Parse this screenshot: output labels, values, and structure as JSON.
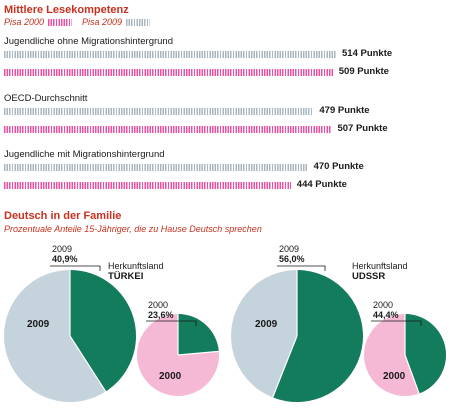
{
  "section1": {
    "title": "Mittlere Lesekompetenz",
    "legend": [
      {
        "label": "Pisa 2000",
        "color": "#ec4fa4"
      },
      {
        "label": "Pisa 2009",
        "color": "#a9b7c1"
      }
    ]
  },
  "section2": {
    "title": "Deutsch in der Familie",
    "subtitle": "Prozentuale Anteile 15-Jähriger, die zu Hause Deutsch sprechen"
  },
  "colors": {
    "pisa2000": "#ec4fa4",
    "pisa2009": "#a9b7c1",
    "green": "#127c5c",
    "grey": "#c5d3dd",
    "pink": "#f5b9d6",
    "red": "#c8311f"
  },
  "chart_data": [
    {
      "type": "bar",
      "title": "Mittlere Lesekompetenz",
      "categories": [
        "Jugendliche ohne Migrationshintergrund",
        "OECD-Durchschnitt",
        "Jugendliche mit Migrationshintergrund"
      ],
      "series": [
        {
          "name": "Pisa 2009",
          "values": [
            514,
            479,
            470
          ],
          "labels": [
            "514 Punkte",
            "479 Punkte",
            "470 Punkte"
          ]
        },
        {
          "name": "Pisa 2000",
          "values": [
            509,
            507,
            444
          ],
          "labels": [
            "509 Punkte",
            "507 Punkte",
            "444 Punkte"
          ]
        }
      ]
    },
    {
      "type": "pie",
      "title": "Deutsch in der Familie",
      "subtitle": "Prozentuale Anteile 15-Jähriger, die zu Hause Deutsch sprechen",
      "groups": [
        {
          "origin_label": "Herkunftsland",
          "origin": "TÜRKEI",
          "pies": [
            {
              "year": "2009",
              "percent": 40.9,
              "percent_label": "40,9%"
            },
            {
              "year": "2000",
              "percent": 23.6,
              "percent_label": "23,6%"
            }
          ]
        },
        {
          "origin_label": "Herkunftsland",
          "origin": "UDSSR",
          "pies": [
            {
              "year": "2009",
              "percent": 56.0,
              "percent_label": "56,0%"
            },
            {
              "year": "2000",
              "percent": 44.4,
              "percent_label": "44,4%"
            }
          ]
        }
      ]
    }
  ]
}
